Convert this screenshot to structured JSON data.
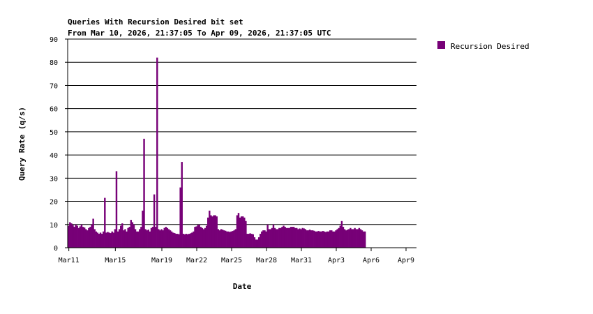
{
  "chart_data": {
    "type": "area",
    "title": "Queries With Recursion Desired bit set",
    "subtitle": "From Mar 10, 2026, 21:37:05 To Apr 09, 2026, 21:37:05 UTC",
    "xlabel": "Date",
    "ylabel": "Query Rate (q/s)",
    "ylim": [
      0,
      90
    ],
    "yticks": [
      0,
      10,
      20,
      30,
      40,
      50,
      60,
      70,
      80,
      90
    ],
    "grid": "horizontal",
    "legend_position": "right",
    "color": "#770077",
    "x_tick_labels": [
      "Mar11",
      "Mar15",
      "Mar19",
      "Mar22",
      "Mar25",
      "Mar28",
      "Mar31",
      "Apr3",
      "Apr6",
      "Apr9"
    ],
    "x_tick_days": [
      0.1,
      4.1,
      8.1,
      11.1,
      14.1,
      17.1,
      20.1,
      23.1,
      26.1,
      29.1
    ],
    "series": [
      {
        "name": "Recursion Desired",
        "sample_interval_hours": 3,
        "values": [
          9.5,
          11,
          10.5,
          9.8,
          9,
          10,
          9.5,
          8.5,
          9.2,
          10,
          9,
          8.7,
          8,
          7.5,
          8.5,
          9,
          10,
          12.5,
          8,
          7,
          6.5,
          6,
          6.5,
          6,
          7,
          21.5,
          6.5,
          6.8,
          6.5,
          6.3,
          7,
          6.5,
          8,
          33,
          7,
          8,
          9.5,
          10.5,
          7.5,
          8,
          7,
          8.5,
          9,
          12,
          11,
          10,
          8,
          7,
          7,
          8,
          9,
          16,
          47,
          8,
          7.5,
          7.8,
          7,
          8.5,
          9,
          23,
          9,
          82,
          8,
          7.5,
          8,
          7.5,
          8.5,
          9,
          8.5,
          8,
          7.5,
          7,
          6.5,
          6.3,
          6,
          6,
          5.8,
          26,
          37,
          6,
          5.8,
          6,
          5.8,
          6,
          6.2,
          6.5,
          7,
          9,
          9.2,
          9.8,
          10,
          9,
          8.5,
          8,
          8.5,
          9.5,
          13,
          16,
          14,
          13.5,
          14,
          14,
          13.5,
          8,
          7.5,
          8,
          7.8,
          7.5,
          7.3,
          7,
          7,
          6.8,
          7,
          7.2,
          7.5,
          8,
          14,
          15,
          13,
          13.5,
          13.5,
          13,
          11.5,
          6,
          6,
          6.2,
          6,
          5.8,
          4.5,
          3.5,
          3.5,
          4.5,
          6,
          7,
          7.5,
          7.5,
          7,
          10,
          8,
          8,
          8.5,
          10,
          8.5,
          8,
          8,
          8.5,
          8.5,
          9,
          9.5,
          9,
          8.5,
          8.5,
          8.5,
          9,
          9,
          9,
          8.5,
          8.5,
          8,
          8.3,
          8,
          8.5,
          8.3,
          8,
          7.5,
          7.5,
          7.8,
          7.5,
          7.5,
          7.3,
          7,
          7,
          7.2,
          7,
          7,
          7.2,
          7,
          6.8,
          7,
          7,
          7.5,
          7.5,
          7,
          7,
          7.5,
          8,
          8.5,
          9.5,
          11.5,
          9,
          8,
          7.5,
          7.8,
          8,
          8.5,
          8,
          8,
          8.5,
          8,
          8,
          8.5,
          8,
          7.5,
          7,
          7
        ]
      }
    ]
  }
}
